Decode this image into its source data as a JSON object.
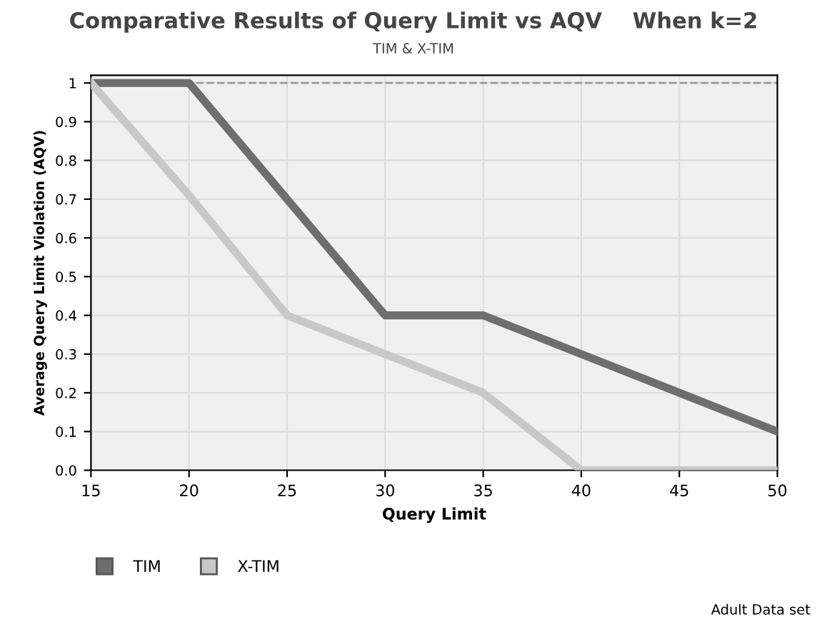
{
  "chart_data": {
    "type": "line",
    "title": "Comparative Results of Query Limit vs AQV    When k=2",
    "subtitle": "TIM & X-TIM",
    "xlabel": "Query Limit",
    "ylabel": "Average Query Limit Violation (AQV)",
    "x": [
      15,
      20,
      25,
      30,
      35,
      40,
      45,
      50
    ],
    "series": [
      {
        "name": "TIM",
        "color": "#6e6e6e",
        "values": [
          1,
          1,
          0.7,
          0.4,
          0.4,
          0.3,
          0.2,
          0.1
        ]
      },
      {
        "name": "X-TIM",
        "color": "#c8c8c8",
        "values": [
          1,
          0.71,
          0.4,
          0.3,
          0.2,
          0,
          0,
          0
        ]
      }
    ],
    "xlim": [
      15,
      50
    ],
    "xticks": [
      15,
      20,
      25,
      30,
      35,
      40,
      45,
      50
    ],
    "ylim": [
      0,
      1.02
    ],
    "yticks": [
      {
        "value": 0,
        "label": "0.0"
      },
      0.1,
      0.2,
      0.3,
      0.4,
      0.5,
      0.6,
      0.7,
      0.8,
      0.9,
      1
    ],
    "ref_lines": [
      {
        "axis": "y",
        "value": 1,
        "color": "#999999",
        "line_style": "dashed"
      }
    ],
    "grid": true,
    "legend": "bottom",
    "marker": "none",
    "line_style": "solid",
    "annotations": [
      "Adult Data set"
    ]
  }
}
